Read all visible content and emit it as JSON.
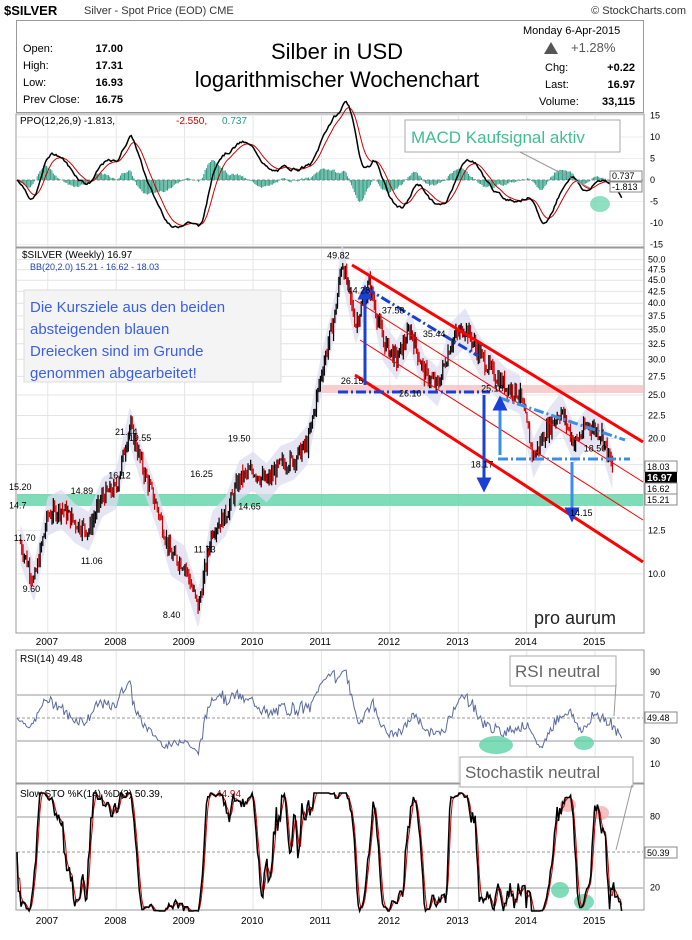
{
  "header": {
    "symbol": "$SILVER",
    "subtitle": "Silver - Spot Price (EOD)  CME",
    "credit": "© StockCharts.com"
  },
  "quote": {
    "title_line1": "Silber in USD",
    "title_line2": "logarithmischer Wochenchart",
    "open_label": "Open:",
    "open": "17.00",
    "high_label": "High:",
    "high": "17.31",
    "low_label": "Low:",
    "low": "16.93",
    "prev_label": "Prev Close:",
    "prev": "16.75",
    "date": "Monday  6-Apr-2015",
    "pct": "+1.28%",
    "chg_label": "Chg:",
    "chg": "+0.22",
    "last_label": "Last:",
    "last": "16.97",
    "vol_label": "Volume:",
    "vol": "33,115"
  },
  "ppo": {
    "label_main": "PPO(12,26,9) -1.813,",
    "label_sig": "-2.550,",
    "label_hist": "0.737",
    "annotation": "MACD Kaufsignal aktiv",
    "val_hist": "0.737",
    "val_line": "-1.813",
    "ticks": [
      "15",
      "10",
      "5",
      "0",
      "-5",
      "-10",
      "-15"
    ]
  },
  "price": {
    "label_main": "$SILVER (Weekly) 16.97",
    "label_bb": "BB(20,2.0) 15.21 - 16.62 - 18.03",
    "annotation_lines": [
      "Die Kursziele aus den beiden",
      "absteigenden blauen",
      "Dreiecken sind im Grunde",
      "genommen abgearbeitet!"
    ],
    "watermark": "pro aurum",
    "val_upper": "18.03",
    "val_last": "16.97",
    "val_mid": "16.62",
    "val_lower": "15.21",
    "ticks": [
      "50.0",
      "47.5",
      "45.0",
      "42.5",
      "40.0",
      "37.5",
      "35.0",
      "32.5",
      "30.0",
      "27.5",
      "25.0",
      "22.5",
      "20.0",
      "17.5",
      "15.0",
      "12.5",
      "10.0"
    ],
    "point_labels": [
      "15.20",
      "14.7",
      "11.70",
      "9.60",
      "14.89",
      "11.06",
      "16.12",
      "21.44",
      "19.55",
      "8.40",
      "16.25",
      "11.73",
      "19.50",
      "14.65",
      "49.82",
      "44.28",
      "37.58",
      "35.44",
      "26.15",
      "26.10",
      "25.18",
      "18.17",
      "18.50",
      "14.15"
    ]
  },
  "x_axis": {
    "years": [
      "2007",
      "2008",
      "2009",
      "2010",
      "2011",
      "2012",
      "2013",
      "2014",
      "2015"
    ]
  },
  "rsi": {
    "label": "RSI(14) 49.48",
    "annotation": "RSI neutral",
    "val": "49.48",
    "ticks": [
      "90",
      "70",
      "50",
      "30",
      "10"
    ]
  },
  "sto": {
    "label_main": "Slow STO %K(14) %D(3) 50.39,",
    "label_d": "44.94",
    "annotation": "Stochastik neutral",
    "val": "50.39",
    "ticks": [
      "80",
      "20"
    ]
  },
  "chart_data": {
    "type": "line",
    "title": "Silber in USD logarithmischer Wochenchart",
    "symbol": "$SILVER",
    "log_scale": true,
    "ylim": [
      7.5,
      52
    ],
    "x": [
      "2006.6",
      "2006.8",
      "2007.0",
      "2007.2",
      "2007.4",
      "2007.6",
      "2007.8",
      "2008.0",
      "2008.2",
      "2008.4",
      "2008.6",
      "2008.8",
      "2009.0",
      "2009.2",
      "2009.4",
      "2009.6",
      "2009.8",
      "2010.0",
      "2010.2",
      "2010.4",
      "2010.6",
      "2010.8",
      "2011.0",
      "2011.2",
      "2011.3",
      "2011.5",
      "2011.7",
      "2011.9",
      "2012.1",
      "2012.3",
      "2012.5",
      "2012.7",
      "2012.9",
      "2013.1",
      "2013.3",
      "2013.5",
      "2013.7",
      "2013.9",
      "2014.1",
      "2014.3",
      "2014.5",
      "2014.7",
      "2014.9",
      "2015.1",
      "2015.26"
    ],
    "series": [
      {
        "name": "$SILVER (Weekly)",
        "values": [
          11.7,
          9.6,
          13.5,
          14.0,
          13.0,
          12.5,
          14.89,
          15.5,
          21.44,
          17.0,
          14.0,
          11.0,
          10.5,
          8.4,
          12.5,
          13.5,
          16.25,
          17.0,
          16.0,
          17.5,
          18.0,
          19.5,
          28.0,
          38.0,
          49.82,
          36.0,
          44.28,
          33.0,
          30.0,
          35.0,
          28.0,
          26.15,
          33.0,
          35.44,
          31.0,
          28.0,
          26.1,
          25.18,
          18.17,
          21.0,
          23.0,
          19.5,
          21.5,
          20.5,
          16.97
        ]
      }
    ],
    "bollinger": {
      "upper": 18.03,
      "middle": 16.62,
      "lower": 15.21
    },
    "ppo": {
      "ppo": -1.813,
      "signal": -2.55,
      "histogram": 0.737
    },
    "rsi": 49.48,
    "stochastic": {
      "k": 50.39,
      "d": 44.94
    }
  },
  "colors": {
    "price": "#000000",
    "up_bar": "#000000",
    "down_bar": "#d00000",
    "channel": "#ff0000",
    "triangle": "#1a3fd4",
    "support": "#5fd3a8",
    "annotation_text": "#3a5fe8",
    "macd_annotation": "#3fbf8f"
  }
}
